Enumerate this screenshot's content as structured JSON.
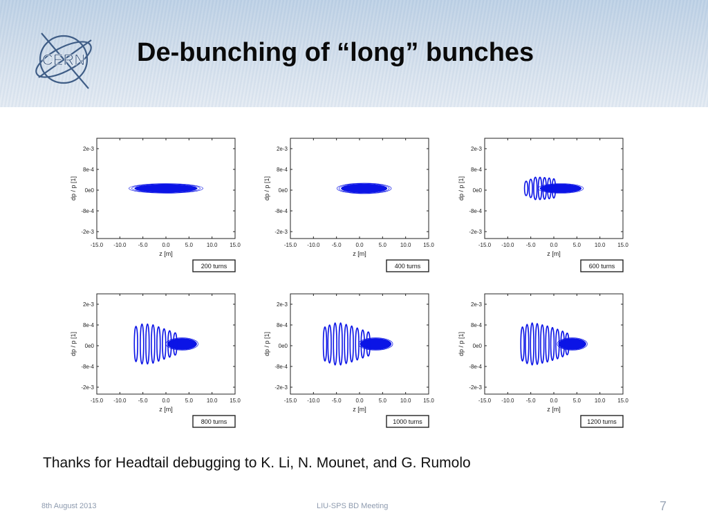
{
  "slide": {
    "title": "De-bunching of “long” bunches",
    "logo_text": "CERN",
    "thanks": "Thanks for Headtail debugging to K. Li, N. Mounet, and G. Rumolo",
    "footer_left": "8th August 2013",
    "footer_center": "LIU-SPS BD Meeting",
    "page_number": "7"
  },
  "colors": {
    "particles": "#0b14e6",
    "banner": "#c7d6e7",
    "axis": "#222222"
  },
  "chart_data": [
    {
      "type": "scatter",
      "turns_label": "200 turns",
      "xlabel": "z [m]",
      "ylabel": "dp / p [1]",
      "xlim": [
        -15,
        15
      ],
      "ylim": [
        -0.0025,
        0.0025
      ],
      "x_ticks": [
        "-15.0",
        "-10.0",
        "-5.0",
        "0.0",
        "5.0",
        "10.0",
        "15.0"
      ],
      "y_ticks": [
        "2e-3",
        "8e-4",
        "0e0",
        "-8e-4",
        "-2e-3"
      ]
    },
    {
      "type": "scatter",
      "turns_label": "400 turns",
      "xlabel": "z [m]",
      "ylabel": "dp / p [1]",
      "xlim": [
        -15,
        15
      ],
      "ylim": [
        -0.0025,
        0.0025
      ],
      "x_ticks": [
        "-15.0",
        "-10.0",
        "-5.0",
        "0.0",
        "5.0",
        "10.0",
        "15.0"
      ],
      "y_ticks": [
        "2e-3",
        "8e-4",
        "0e0",
        "-8e-4",
        "-2e-3"
      ]
    },
    {
      "type": "scatter",
      "turns_label": "600 turns",
      "xlabel": "z [m]",
      "ylabel": "dp / p [1]",
      "xlim": [
        -15,
        15
      ],
      "ylim": [
        -0.0025,
        0.0025
      ],
      "x_ticks": [
        "-15.0",
        "-10.0",
        "-5.0",
        "0.0",
        "5.0",
        "10.0",
        "15.0"
      ],
      "y_ticks": [
        "2e-3",
        "8e-4",
        "0e0",
        "-8e-4",
        "-2e-3"
      ]
    },
    {
      "type": "scatter",
      "turns_label": "800 turns",
      "xlabel": "z [m]",
      "ylabel": "dp / p [1]",
      "xlim": [
        -15,
        15
      ],
      "ylim": [
        -0.0025,
        0.0025
      ],
      "x_ticks": [
        "-15.0",
        "-10.0",
        "-5.0",
        "0.0",
        "5.0",
        "10.0",
        "15.0"
      ],
      "y_ticks": [
        "2e-3",
        "8e-4",
        "0e0",
        "-8e-4",
        "-2e-3"
      ]
    },
    {
      "type": "scatter",
      "turns_label": "1000 turns",
      "xlabel": "z [m]",
      "ylabel": "dp / p [1]",
      "xlim": [
        -15,
        15
      ],
      "ylim": [
        -0.0025,
        0.0025
      ],
      "x_ticks": [
        "-15.0",
        "-10.0",
        "-5.0",
        "0.0",
        "5.0",
        "10.0",
        "15.0"
      ],
      "y_ticks": [
        "2e-3",
        "8e-4",
        "0e0",
        "-8e-4",
        "-2e-3"
      ]
    },
    {
      "type": "scatter",
      "turns_label": "1200 turns",
      "xlabel": "z [m]",
      "ylabel": "dp / p [1]",
      "xlim": [
        -15,
        15
      ],
      "ylim": [
        -0.0025,
        0.0025
      ],
      "x_ticks": [
        "-15.0",
        "-10.0",
        "-5.0",
        "0.0",
        "5.0",
        "10.0",
        "15.0"
      ],
      "y_ticks": [
        "2e-3",
        "8e-4",
        "0e0",
        "-8e-4",
        "-2e-3"
      ]
    }
  ]
}
